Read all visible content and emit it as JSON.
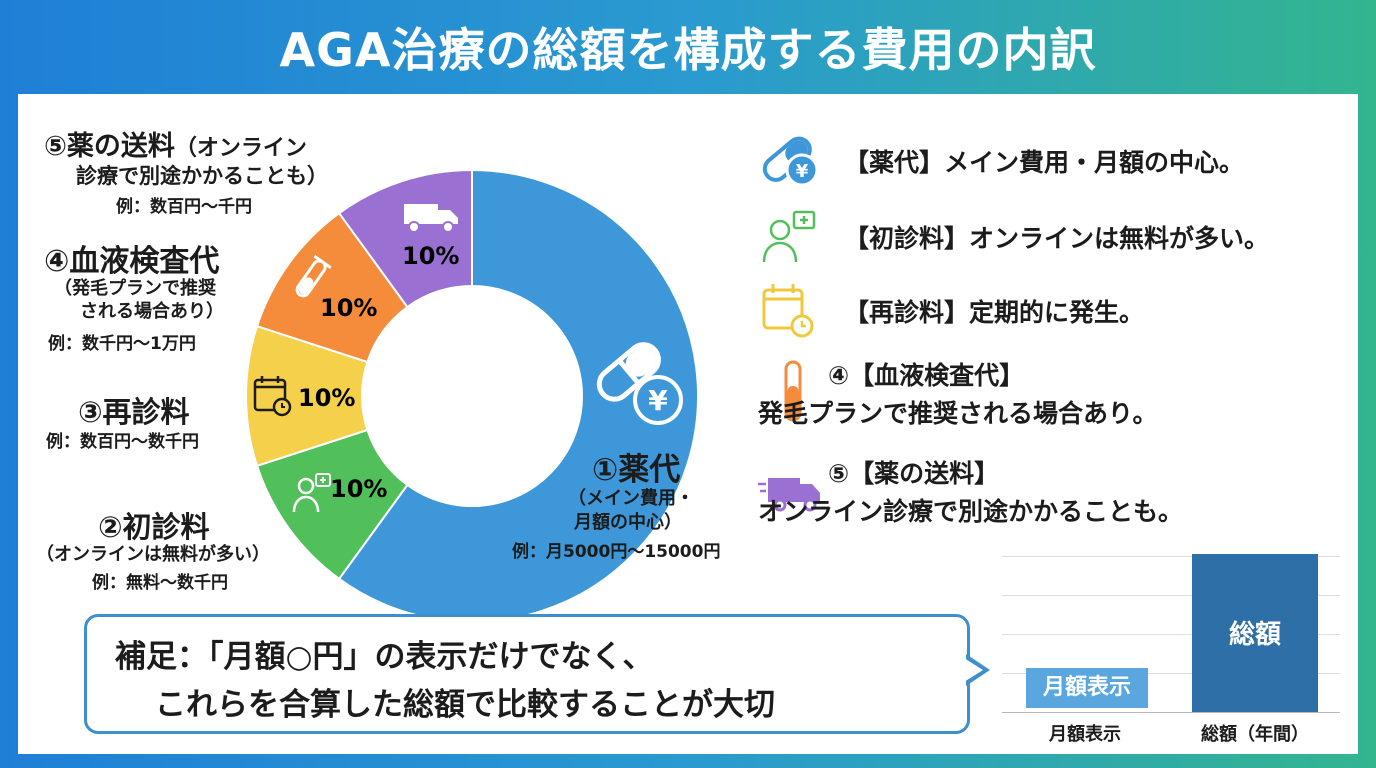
{
  "title": "AGA治療の総額を構成する費用の内訳",
  "chart_data": [
    {
      "type": "pie",
      "subtype": "donut",
      "slices": [
        {
          "key": "drug",
          "label": "①薬代",
          "value": 60,
          "color": "#3d97d8",
          "pct_text": "",
          "icon": "pill-yen-icon"
        },
        {
          "key": "first",
          "label": "②初診料",
          "value": 10,
          "color": "#51bf5a",
          "pct_text": "10%",
          "icon": "doctor-icon"
        },
        {
          "key": "revisit",
          "label": "③再診料",
          "value": 10,
          "color": "#f5d04a",
          "pct_text": "10%",
          "icon": "calendar-icon"
        },
        {
          "key": "blood",
          "label": "④血液検査代",
          "value": 10,
          "color": "#f48c3b",
          "pct_text": "10%",
          "icon": "test-tube-icon"
        },
        {
          "key": "ship",
          "label": "⑤薬の送料",
          "value": 10,
          "color": "#9b70d3",
          "pct_text": "10%",
          "icon": "truck-icon"
        }
      ]
    },
    {
      "type": "bar",
      "categories": [
        "月額表示",
        "総額（年間）"
      ],
      "values": [
        1,
        12
      ],
      "bar_labels": [
        "月額表示",
        "総額"
      ],
      "colors": [
        "#5aa7e0",
        "#2f6fa8"
      ],
      "grid": true
    }
  ],
  "labels": {
    "drug": {
      "head": "①薬代",
      "sub1": "（メイン費用・",
      "sub2": "月額の中心）",
      "ex": "例：月5000円〜15000円"
    },
    "first": {
      "head": "②初診料",
      "sub1": "（オンラインは無料が多い）",
      "ex": "例：無料〜数千円"
    },
    "revisit": {
      "head": "③再診料",
      "ex": "例：数百円〜数千円"
    },
    "blood": {
      "head": "④血液検査代",
      "sub1": "（発毛プランで推奨",
      "sub2": "される場合あり）",
      "ex": "例：数千円〜1万円"
    },
    "ship": {
      "head1": "⑤薬の送料",
      "head2": "（オンライン",
      "sub1": "診療で別途かかることも）",
      "ex": "例：数百円〜千円"
    }
  },
  "legend": [
    {
      "icon": "pill-yen-icon",
      "text": "【薬代】メイン費用・月額の中心。"
    },
    {
      "icon": "doctor-icon",
      "text": "【初診料】オンラインは無料が多い。"
    },
    {
      "icon": "calendar-icon",
      "text": "【再診料】定期的に発生。"
    },
    {
      "icon": "test-tube-icon",
      "text1": "④【血液検査代】",
      "text2": "発毛プランで推奨される場合あり。"
    },
    {
      "icon": "truck-icon",
      "text1": "⑤【薬の送料】",
      "text2": "オンライン診療で別途かかることも。"
    }
  ],
  "callout": {
    "line1": "補足：「月額○円」の表示だけでなく、",
    "line2": "これらを合算した総額で比較することが大切"
  },
  "colors": {
    "accent": "#3e8fd0",
    "text": "#1c1c1c"
  }
}
